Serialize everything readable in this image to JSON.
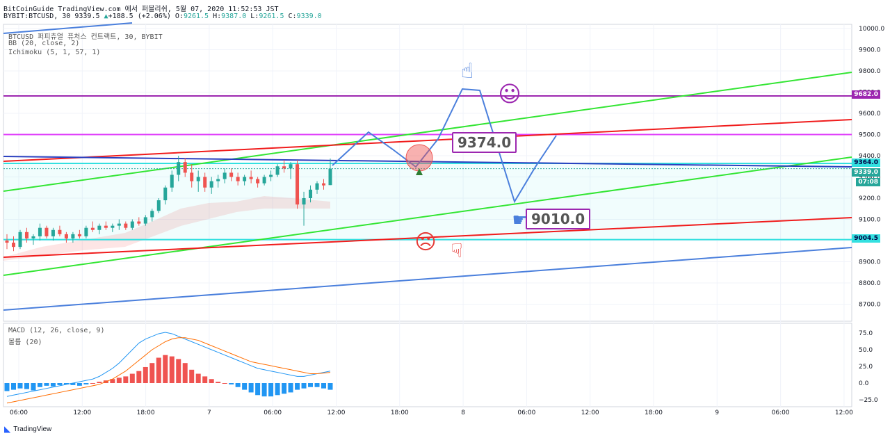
{
  "header": {
    "line1": "BitCoinGuide TradingView.com 에서 퍼블리쉬, 5월 07, 2020 11:52:53 JST",
    "symbol": "BYBIT:BTCUSD, 30",
    "last": "9339.5",
    "change": "+188.5 (+2.06%)",
    "o_label": "O:",
    "o": "9261.5",
    "h_label": "H:",
    "h": "9387.0",
    "l_label": "L:",
    "l": "9261.5",
    "c_label": "C:",
    "c": "9339.0"
  },
  "indicators": {
    "title": "BTCUSD 퍼피츄얼 퓨처스 컨트랙트, 30, BYBIT",
    "bb": "BB (20, close, 2)",
    "ichimoku": "Ichimoku (5, 1, 57, 1)",
    "macd": "MACD (12, 26, close, 9)",
    "volume": "볼륨 (20)"
  },
  "price_axis": [
    "10000.0",
    "9900.0",
    "9800.0",
    "9700.0",
    "9600.0",
    "9500.0",
    "9400.0",
    "9300.0",
    "9200.0",
    "9100.0",
    "9000.0",
    "8900.0",
    "8800.0",
    "8700.0"
  ],
  "price_tags": {
    "p9682": "9682.0",
    "p9364": "9364.0",
    "p9339": "9339.0",
    "timer": "07:08",
    "p9004": "9004.5"
  },
  "macd_axis": [
    "75.0",
    "50.0",
    "25.0",
    "0.0",
    "−25.0"
  ],
  "time_axis": [
    "06:00",
    "12:00",
    "18:00",
    "7",
    "06:00",
    "12:00",
    "18:00",
    "8",
    "06:00",
    "12:00",
    "18:00",
    "9",
    "06:00",
    "12:00"
  ],
  "annotations": {
    "target_high": "9374.0",
    "target_low": "9010.0"
  },
  "colors": {
    "up": "#26a69a",
    "down": "#ef5350",
    "purple": "#9c27b0",
    "magenta": "#e040fb",
    "red": "#f01c1c",
    "green": "#33e533",
    "blue": "#4a7fdc",
    "cyan": "#33e0e0"
  },
  "footer": {
    "brand": "TradingView"
  },
  "chart_data": {
    "type": "candlestick",
    "ylim": [
      8650,
      10020
    ],
    "horizontal_levels": [
      9682.0,
      9500.0,
      9364.0,
      9004.5
    ],
    "candles": [
      [
        9000,
        9030,
        8960,
        8990
      ],
      [
        8990,
        9020,
        8950,
        8970
      ],
      [
        8970,
        9050,
        8960,
        9040
      ],
      [
        9040,
        9060,
        8990,
        9010
      ],
      [
        9010,
        9030,
        8980,
        9020
      ],
      [
        9020,
        9080,
        9000,
        9060
      ],
      [
        9060,
        9070,
        9010,
        9020
      ],
      [
        9020,
        9060,
        9000,
        9050
      ],
      [
        9050,
        9070,
        9020,
        9030
      ],
      [
        9030,
        9040,
        8990,
        9010
      ],
      [
        9010,
        9040,
        8990,
        9030
      ],
      [
        9030,
        9050,
        9010,
        9020
      ],
      [
        9020,
        9070,
        9010,
        9060
      ],
      [
        9060,
        9090,
        9040,
        9050
      ],
      [
        9050,
        9080,
        9030,
        9070
      ],
      [
        9070,
        9090,
        9050,
        9060
      ],
      [
        9060,
        9080,
        9040,
        9070
      ],
      [
        9070,
        9100,
        9050,
        9080
      ],
      [
        9080,
        9090,
        9050,
        9060
      ],
      [
        9060,
        9100,
        9050,
        9090
      ],
      [
        9090,
        9110,
        9070,
        9080
      ],
      [
        9080,
        9120,
        9070,
        9110
      ],
      [
        9110,
        9150,
        9090,
        9140
      ],
      [
        9140,
        9200,
        9130,
        9190
      ],
      [
        9190,
        9260,
        9170,
        9250
      ],
      [
        9250,
        9330,
        9230,
        9310
      ],
      [
        9310,
        9400,
        9280,
        9370
      ],
      [
        9370,
        9390,
        9300,
        9320
      ],
      [
        9320,
        9360,
        9250,
        9280
      ],
      [
        9280,
        9330,
        9230,
        9300
      ],
      [
        9300,
        9320,
        9230,
        9250
      ],
      [
        9250,
        9300,
        9220,
        9280
      ],
      [
        9280,
        9310,
        9250,
        9290
      ],
      [
        9290,
        9340,
        9270,
        9320
      ],
      [
        9320,
        9340,
        9280,
        9300
      ],
      [
        9300,
        9320,
        9260,
        9280
      ],
      [
        9280,
        9310,
        9260,
        9300
      ],
      [
        9300,
        9330,
        9270,
        9290
      ],
      [
        9290,
        9300,
        9250,
        9270
      ],
      [
        9270,
        9310,
        9260,
        9300
      ],
      [
        9300,
        9330,
        9280,
        9310
      ],
      [
        9310,
        9360,
        9300,
        9350
      ],
      [
        9350,
        9380,
        9320,
        9340
      ],
      [
        9340,
        9370,
        9290,
        9360
      ],
      [
        9360,
        9380,
        9150,
        9170
      ],
      [
        9170,
        9230,
        9070,
        9200
      ],
      [
        9200,
        9260,
        9180,
        9240
      ],
      [
        9240,
        9280,
        9220,
        9270
      ],
      [
        9270,
        9290,
        9240,
        9260
      ],
      [
        9261.5,
        9387,
        9261.5,
        9339
      ]
    ],
    "macd_hist": [
      -12,
      -10,
      -8,
      -9,
      -11,
      -6,
      -4,
      -5,
      -3,
      -2,
      -3,
      -4,
      -2,
      0,
      2,
      4,
      6,
      8,
      10,
      14,
      18,
      24,
      30,
      38,
      42,
      40,
      36,
      30,
      20,
      14,
      10,
      6,
      2,
      0,
      -2,
      -6,
      -10,
      -14,
      -18,
      -20,
      -20,
      -18,
      -16,
      -14,
      -10,
      -8,
      -6,
      -6,
      -8,
      -10
    ],
    "macd": [
      -20,
      -18,
      -16,
      -14,
      -12,
      -10,
      -8,
      -6,
      -4,
      -2,
      0,
      2,
      4,
      6,
      10,
      16,
      22,
      30,
      40,
      50,
      60,
      66,
      70,
      74,
      76,
      74,
      70,
      66,
      62,
      58,
      54,
      50,
      46,
      42,
      38,
      34,
      30,
      26,
      22,
      20,
      18,
      16,
      14,
      12,
      10,
      10,
      12,
      14,
      16,
      18
    ],
    "signal": [
      -30,
      -28,
      -26,
      -24,
      -22,
      -20,
      -18,
      -16,
      -14,
      -12,
      -10,
      -8,
      -6,
      -4,
      -2,
      2,
      6,
      12,
      18,
      26,
      34,
      42,
      50,
      56,
      62,
      66,
      68,
      68,
      66,
      64,
      60,
      56,
      52,
      48,
      44,
      40,
      36,
      32,
      30,
      28,
      26,
      24,
      22,
      20,
      18,
      16,
      14,
      14,
      15,
      16
    ]
  }
}
